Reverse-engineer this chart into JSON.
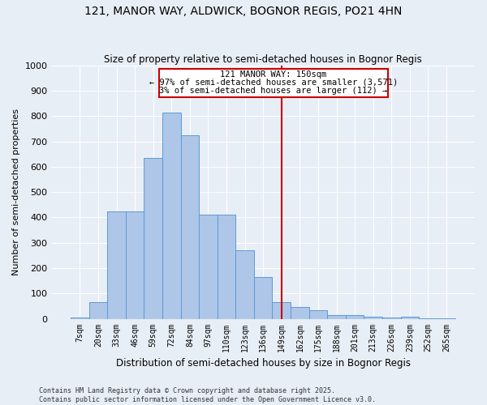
{
  "title": "121, MANOR WAY, ALDWICK, BOGNOR REGIS, PO21 4HN",
  "subtitle": "Size of property relative to semi-detached houses in Bognor Regis",
  "xlabel": "Distribution of semi-detached houses by size in Bognor Regis",
  "ylabel": "Number of semi-detached properties",
  "categories": [
    "7sqm",
    "20sqm",
    "33sqm",
    "46sqm",
    "59sqm",
    "72sqm",
    "84sqm",
    "97sqm",
    "110sqm",
    "123sqm",
    "136sqm",
    "149sqm",
    "162sqm",
    "175sqm",
    "188sqm",
    "201sqm",
    "213sqm",
    "226sqm",
    "239sqm",
    "252sqm",
    "265sqm"
  ],
  "values": [
    5,
    65,
    425,
    425,
    635,
    815,
    725,
    410,
    410,
    270,
    165,
    65,
    45,
    35,
    15,
    15,
    8,
    5,
    8,
    2,
    2
  ],
  "bar_color": "#aec6e8",
  "bar_edge_color": "#5b9bd5",
  "vline_idx": 11,
  "vline_color": "#cc0000",
  "vline_label": "121 MANOR WAY: 150sqm",
  "annotation_smaller": "← 97% of semi-detached houses are smaller (3,571)",
  "annotation_larger": "3% of semi-detached houses are larger (112) →",
  "box_color": "#cc0000",
  "background_color": "#e8eef5",
  "footer": "Contains HM Land Registry data © Crown copyright and database right 2025.\nContains public sector information licensed under the Open Government Licence v3.0.",
  "ylim": [
    0,
    1000
  ],
  "yticks": [
    0,
    100,
    200,
    300,
    400,
    500,
    600,
    700,
    800,
    900,
    1000
  ]
}
